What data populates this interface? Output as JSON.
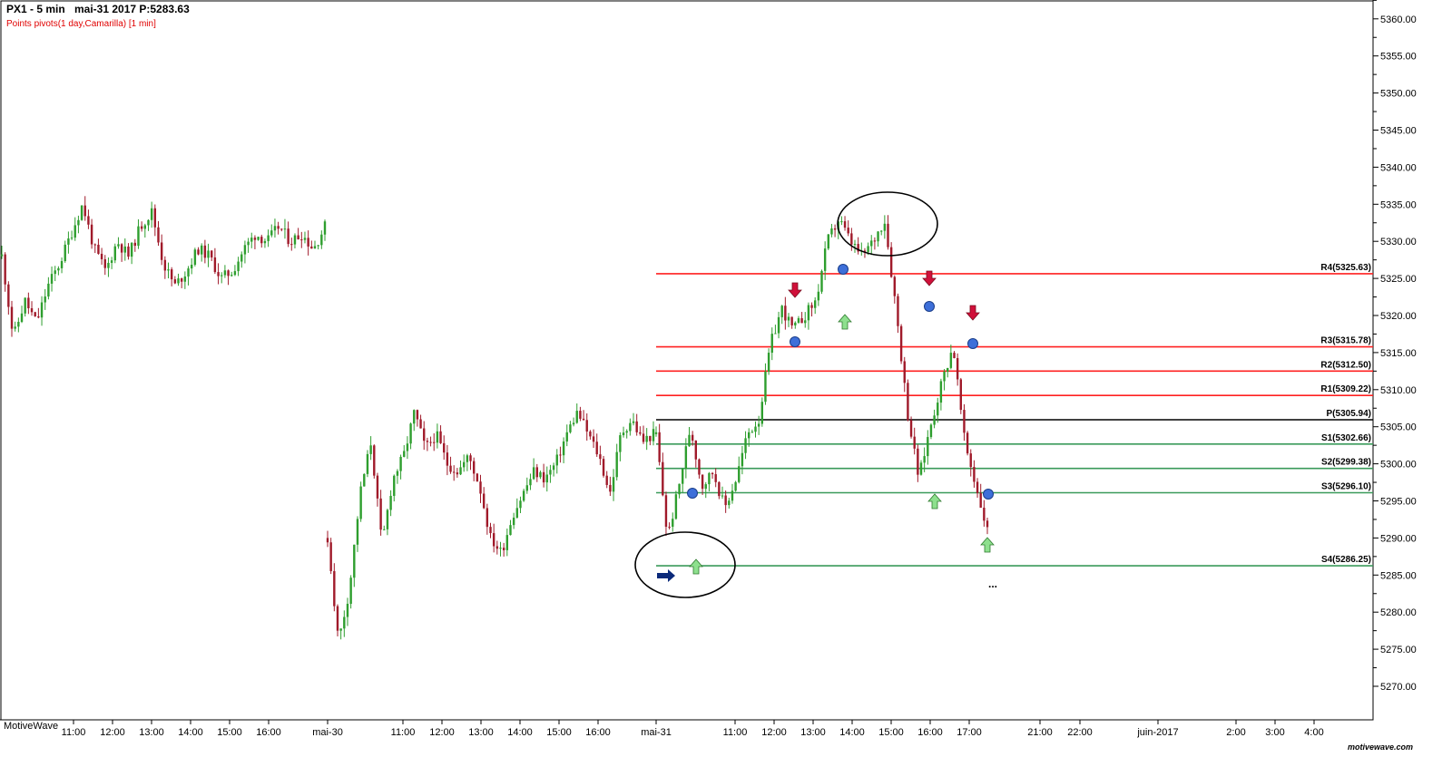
{
  "header": {
    "symbol": "PX1 - 5 min",
    "date_price": "mai-31 2017  P:5283.63",
    "indicator": "Points pivots(1 day,Camarilla) [1 min]"
  },
  "watermark": "MotiveWave",
  "brand": "motivewave.com",
  "colors": {
    "up_candle": "#2e9e2e",
    "down_candle": "#a01a2a",
    "resistance": "#ff2020",
    "support": "#3a9a5a",
    "pivot": "#000000",
    "marker_dot": "#3d6fd9",
    "arrow_down": "#d0103a",
    "arrow_up": "#8ee08e",
    "arrow_right": "#0b2a7a"
  },
  "chart_data": {
    "type": "candlestick",
    "title": "PX1 - 5 min",
    "y_axis": {
      "range": [
        5268,
        5363
      ],
      "ticks": [
        5270.0,
        5275.0,
        5280.0,
        5285.0,
        5290.0,
        5295.0,
        5300.0,
        5305.0,
        5310.0,
        5315.0,
        5320.0,
        5325.0,
        5330.0,
        5335.0,
        5340.0,
        5345.0,
        5350.0,
        5355.0,
        5360.0
      ],
      "tick_labels": [
        "5270.00",
        "5275.00",
        "5280.00",
        "5285.00",
        "5290.00",
        "5295.00",
        "5300.00",
        "5305.00",
        "5310.00",
        "5315.00",
        "5320.00",
        "5325.00",
        "5330.00",
        "5335.00",
        "5340.00",
        "5345.00",
        "5350.00",
        "5355.00",
        "5360.00"
      ],
      "position": "right"
    },
    "x_axis": {
      "labels": [
        "11:00",
        "12:00",
        "13:00",
        "14:00",
        "15:00",
        "16:00",
        "mai-30",
        "11:00",
        "12:00",
        "13:00",
        "14:00",
        "15:00",
        "16:00",
        "mai-31",
        "11:00",
        "12:00",
        "13:00",
        "14:00",
        "15:00",
        "16:00",
        "17:00",
        "21:00",
        "22:00",
        "juin-2017",
        "2:00",
        "3:00",
        "4:00"
      ]
    },
    "pivot_levels": [
      {
        "name": "R4",
        "label": "R4(5325.63)",
        "value": 5325.63,
        "kind": "resistance"
      },
      {
        "name": "R3",
        "label": "R3(5315.78)",
        "value": 5315.78,
        "kind": "resistance"
      },
      {
        "name": "R2",
        "label": "R2(5312.50)",
        "value": 5312.5,
        "kind": "resistance"
      },
      {
        "name": "R1",
        "label": "R1(5309.22)",
        "value": 5309.22,
        "kind": "resistance"
      },
      {
        "name": "P",
        "label": "P(5305.94)",
        "value": 5305.94,
        "kind": "pivot"
      },
      {
        "name": "S1",
        "label": "S1(5302.66)",
        "value": 5302.66,
        "kind": "support"
      },
      {
        "name": "S2",
        "label": "S2(5299.38)",
        "value": 5299.38,
        "kind": "support"
      },
      {
        "name": "S3",
        "label": "S3(5296.10)",
        "value": 5296.1,
        "kind": "support"
      },
      {
        "name": "S4",
        "label": "S4(5286.25)",
        "value": 5286.25,
        "kind": "support"
      }
    ],
    "price_path": [
      [
        5328,
        5317,
        5322,
        5319,
        5324,
        5327,
        5331,
        5335,
        5329,
        5326,
        5330,
        5328,
        5332,
        5334,
        5327,
        5324,
        5326,
        5329,
        5328,
        5325,
        5326,
        5329,
        5331,
        5330,
        5332,
        5330,
        5331,
        5329,
        5332
      ],
      [
        5290,
        5276,
        5283,
        5296,
        5303,
        5289,
        5298,
        5301,
        5307,
        5302,
        5304,
        5300,
        5299,
        5301,
        5297,
        5290,
        5288,
        5293,
        5296,
        5299,
        5298,
        5300,
        5304,
        5307,
        5304,
        5301,
        5296,
        5304,
        5306,
        5303,
        5304
      ],
      [
        5304,
        5290,
        5297,
        5305,
        5297,
        5299,
        5294,
        5298,
        5304,
        5306,
        5316,
        5321,
        5318,
        5320,
        5322,
        5330,
        5333,
        5330,
        5328,
        5330,
        5333,
        5321,
        5307,
        5298,
        5305,
        5311,
        5316,
        5303,
        5297,
        5291
      ]
    ],
    "annotations": {
      "markers": "Blue dots at level crossings; red down-arrows and green up-arrows as signals; ellipses around the session low and session high",
      "trailing_mark": "..."
    }
  }
}
